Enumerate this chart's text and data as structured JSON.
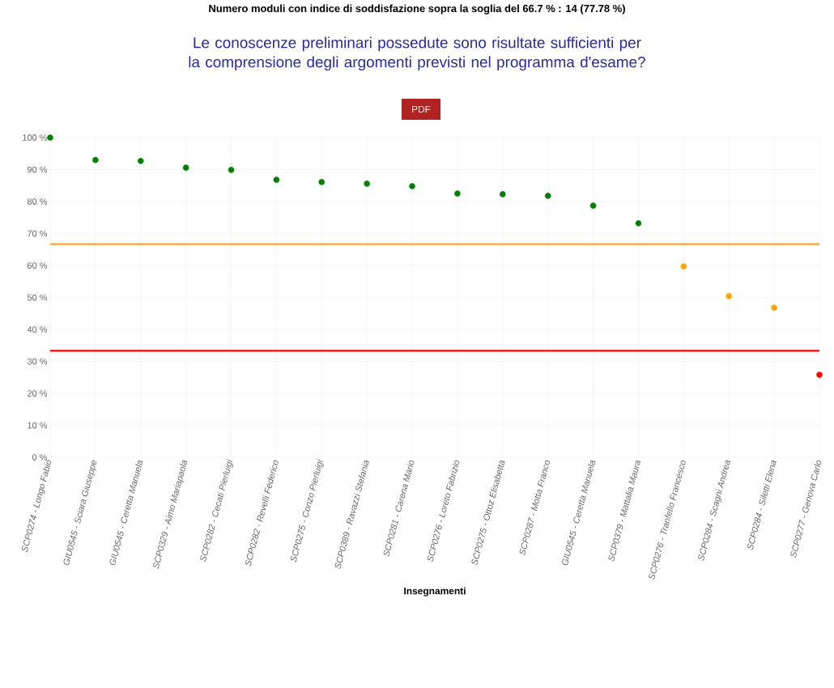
{
  "chart_data": {
    "type": "scatter",
    "title": "Le conoscenze preliminari possedute sono risultate sufficienti per la comprensione degli argomenti previsti nel programma d'esame?",
    "xlabel": "Insegnamenti",
    "annotations": [
      "Numero moduli con indice di soddisfazione sopra la soglia del 66.7 % : 14 (77.78 %)",
      "PDF"
    ],
    "categories": [
      "SCP0274 - Longo Fabio",
      "GIU0545 - Sciara Giuseppe",
      "GIU0545 - Ceretta Manuela",
      "SCP0329 - Aimo Mariapaola",
      "SCP0282 - Cecati Pierluigi",
      "SCP0282 - Revelli Federico",
      "SCP0275 - Conzo Pierluigi",
      "SCP0389 - Ravazzi Stefania",
      "SCP0281 - Carena Mario",
      "SCP0276 - Loreto Fabrizio",
      "SCP0275 - Ottoz Elisabetta",
      "SCP0287 - Motta Franco",
      "GIU0545 - Ceretta Manuela",
      "SCP0379 - Mattalia Maura",
      "SCP0276 - Tranfello Francesco",
      "SCP0284 - Scagni Andrea",
      "SCP0284 - Siletti Elena",
      "SCP0277 - Genova Carlo"
    ],
    "values": [
      100,
      93,
      92.7,
      90.6,
      89.9,
      86.8,
      86.1,
      85.6,
      84.8,
      82.5,
      82.3,
      81.8,
      78.7,
      73.2,
      59.7,
      50.4,
      46.8,
      25.8
    ],
    "colors": [
      "#008000",
      "#008000",
      "#008000",
      "#008000",
      "#008000",
      "#008000",
      "#008000",
      "#008000",
      "#008000",
      "#008000",
      "#008000",
      "#008000",
      "#008000",
      "#008000",
      "#ffa500",
      "#ffa500",
      "#ffa500",
      "#ff0000"
    ],
    "ylim": [
      0,
      100
    ],
    "yticks": [
      {
        "value": 0,
        "label": "0 %"
      },
      {
        "value": 10,
        "label": "10 %"
      },
      {
        "value": 20,
        "label": "20 %"
      },
      {
        "value": 30,
        "label": "30 %"
      },
      {
        "value": 40,
        "label": "40 %"
      },
      {
        "value": 50,
        "label": "50 %"
      },
      {
        "value": 60,
        "label": "60 %"
      },
      {
        "value": 70,
        "label": "70 %"
      },
      {
        "value": 80,
        "label": "80 %"
      },
      {
        "value": 90,
        "label": "90 %"
      },
      {
        "value": 100,
        "label": "100 %"
      }
    ],
    "ref_lines": [
      {
        "axis": "y",
        "value": 66.7,
        "color": "#f7a632"
      },
      {
        "axis": "y",
        "value": 33.3,
        "color": "#ff0000"
      }
    ],
    "grid": true,
    "marker": "circle"
  }
}
